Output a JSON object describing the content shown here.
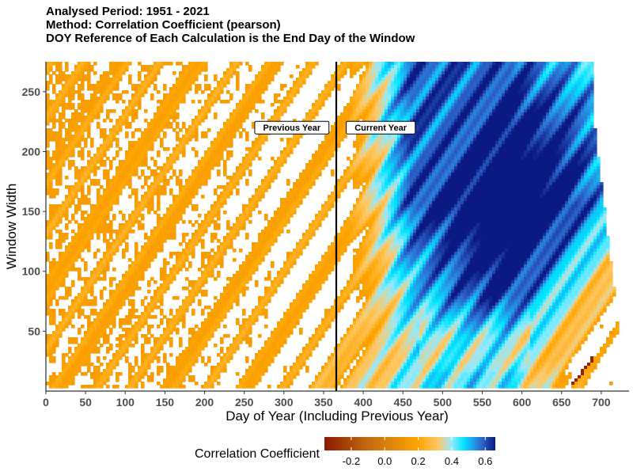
{
  "titles": {
    "line1": "Analysed Period: 1951 - 2021",
    "line2": "Method: Correlation Coefficient (pearson)",
    "line3": "DOY Reference of Each Calculation is the End Day of the Window"
  },
  "chart_data": {
    "type": "heatmap",
    "xlabel": "Day of Year  (Including Previous Year)",
    "ylabel": "Window Width",
    "xlim": [
      0,
      735
    ],
    "ylim": [
      0,
      275
    ],
    "x_ticks": [
      0,
      50,
      100,
      150,
      200,
      250,
      300,
      350,
      400,
      450,
      500,
      550,
      600,
      650,
      700
    ],
    "y_ticks": [
      50,
      100,
      150,
      200,
      250
    ],
    "reference_line_x": 366,
    "annotations": [
      {
        "label": "Previous Year",
        "x": 310,
        "y": 220
      },
      {
        "label": "Current Year",
        "x": 422,
        "y": 220
      }
    ],
    "colorbar": {
      "title": "Correlation Coefficient",
      "range": [
        -0.36,
        0.66
      ],
      "ticks": [
        -0.2,
        0.0,
        0.2,
        0.4,
        0.6
      ],
      "tick_labels": [
        "-0.2",
        "0.0",
        "0.2",
        "0.4",
        "0.6"
      ],
      "colors": [
        {
          "value": -0.36,
          "color": "#8b1a00"
        },
        {
          "value": -0.1,
          "color": "#c26a0f"
        },
        {
          "value": 0.2,
          "color": "#ffa500"
        },
        {
          "value": 0.32,
          "color": "#ffc866"
        },
        {
          "value": 0.4,
          "color": "#94eaff"
        },
        {
          "value": 0.47,
          "color": "#00e5ff"
        },
        {
          "value": 0.52,
          "color": "#1fa8ee"
        },
        {
          "value": 0.58,
          "color": "#2c64cc"
        },
        {
          "value": 0.66,
          "color": "#0a1a82"
        }
      ]
    },
    "grid": false,
    "legend_position": "bottom"
  }
}
